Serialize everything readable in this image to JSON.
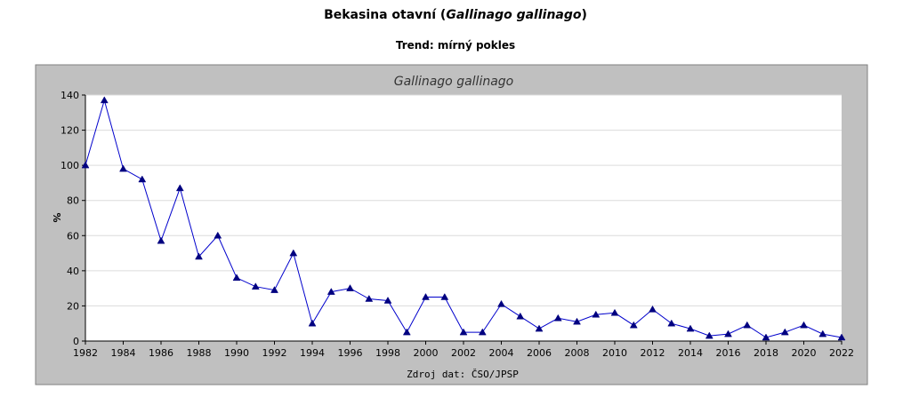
{
  "page": {
    "title_main": "Bekasina otavní (",
    "title_species": "Gallinago gallinago",
    "title_end": ")",
    "subtitle": "Trend: mírný pokles"
  },
  "colors": {
    "panel_bg": "#c0c0c0",
    "panel_border": "#7f7f7f",
    "plot_bg": "#ffffff",
    "grid": "#dcdcdc",
    "series": "#0000cc",
    "text": "#000000"
  },
  "chart_data": {
    "type": "line",
    "title": "Gallinago gallinago",
    "xlabel": "Zdroj dat: ČSO/JPSP",
    "ylabel": "%",
    "ylim": [
      0,
      140
    ],
    "xlim": [
      1982,
      2022
    ],
    "yticks": [
      0,
      20,
      40,
      60,
      80,
      100,
      120,
      140
    ],
    "xticks": [
      1982,
      1984,
      1986,
      1988,
      1990,
      1992,
      1994,
      1996,
      1998,
      2000,
      2002,
      2004,
      2006,
      2008,
      2010,
      2012,
      2014,
      2016,
      2018,
      2020,
      2022
    ],
    "grid": true,
    "marker": "triangle",
    "x": [
      1982,
      1983,
      1984,
      1985,
      1986,
      1987,
      1988,
      1989,
      1990,
      1991,
      1992,
      1993,
      1994,
      1995,
      1996,
      1997,
      1998,
      1999,
      2000,
      2001,
      2002,
      2003,
      2004,
      2005,
      2006,
      2007,
      2008,
      2009,
      2010,
      2011,
      2012,
      2013,
      2014,
      2015,
      2016,
      2017,
      2018,
      2019,
      2020,
      2021,
      2022
    ],
    "y": [
      100,
      137,
      98,
      92,
      57,
      87,
      48,
      60,
      36,
      31,
      29,
      50,
      10,
      28,
      30,
      24,
      23,
      5,
      25,
      25,
      5,
      5,
      21,
      14,
      7,
      13,
      11,
      15,
      16,
      9,
      18,
      10,
      7,
      3,
      4,
      9,
      2,
      5,
      9,
      4,
      2
    ]
  }
}
